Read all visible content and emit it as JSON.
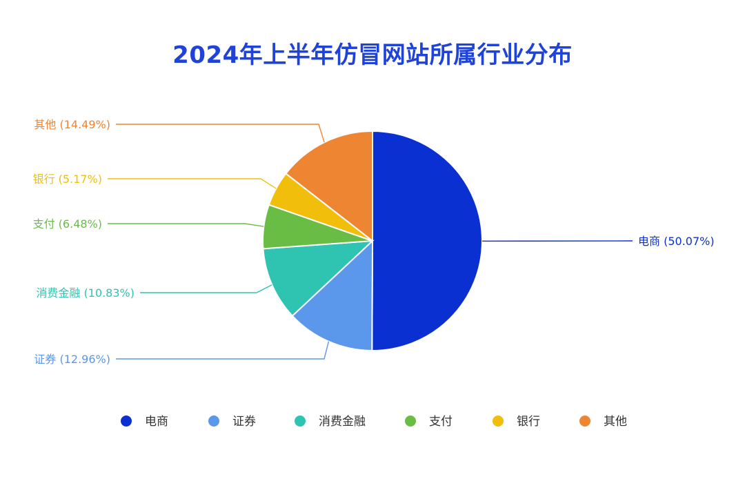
{
  "chart_data": {
    "type": "pie",
    "title": "2024年上半年仿冒网站所属行业分布",
    "slices": [
      {
        "name": "电商",
        "value": 50.07,
        "label": "电商 (50.07%)",
        "color": "#0a30d2"
      },
      {
        "name": "证券",
        "value": 12.96,
        "label": "证券 (12.96%)",
        "color": "#5b97ea"
      },
      {
        "name": "消费金融",
        "value": 10.83,
        "label": "消费金融 (10.83%)",
        "color": "#2ec4b1"
      },
      {
        "name": "支付",
        "value": 6.48,
        "label": "支付 (6.48%)",
        "color": "#69bd45"
      },
      {
        "name": "银行",
        "value": 5.17,
        "label": "银行 (5.17%)",
        "color": "#f1be0b"
      },
      {
        "name": "其他",
        "value": 14.49,
        "label": "其他 (14.49%)",
        "color": "#ee8533"
      }
    ],
    "legend_position": "bottom"
  }
}
